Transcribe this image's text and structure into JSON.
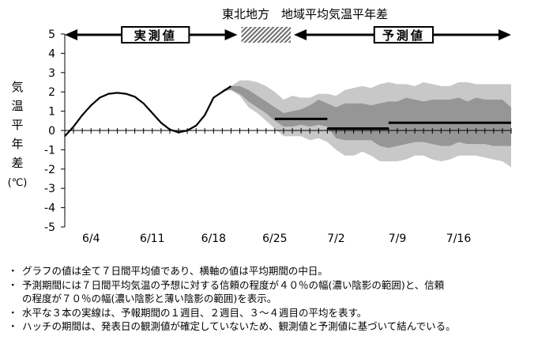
{
  "chart_data": {
    "type": "line",
    "title": "東北地方　地域平均気温平年差",
    "ylabel": [
      "気",
      "温",
      "平",
      "年",
      "差",
      "(℃)"
    ],
    "ylim": [
      -5,
      5
    ],
    "yticks": [
      "5",
      "4",
      "3",
      "2",
      "1",
      "0",
      "-1",
      "-2",
      "-3",
      "-4",
      "-5"
    ],
    "xlim": [
      "6/1",
      "7/22"
    ],
    "xticks": [
      "6/4",
      "6/11",
      "6/18",
      "6/25",
      "7/2",
      "7/9",
      "7/16"
    ],
    "grid": false,
    "labels": {
      "observed": "実測値",
      "forecast": "予測値"
    },
    "periods": {
      "observed": [
        "6/1",
        "6/21"
      ],
      "hatch": [
        "6/21",
        "6/27"
      ],
      "forecast": [
        "6/27",
        "7/22"
      ]
    },
    "series": [
      {
        "kind": "observed",
        "x": [
          "6/1",
          "6/2",
          "6/3",
          "6/4",
          "6/5",
          "6/6",
          "6/7",
          "6/8",
          "6/9",
          "6/10",
          "6/11",
          "6/12",
          "6/13",
          "6/14",
          "6/15",
          "6/16",
          "6/17",
          "6/18",
          "6/19",
          "6/20"
        ],
        "values": [
          -0.3,
          0.2,
          0.8,
          1.3,
          1.7,
          1.9,
          1.95,
          1.9,
          1.75,
          1.4,
          0.9,
          0.4,
          0.05,
          -0.1,
          0.0,
          0.25,
          0.8,
          1.7,
          2.0,
          2.3
        ]
      },
      {
        "kind": "range70",
        "x": [
          "6/19",
          "6/20",
          "6/21",
          "6/22",
          "6/23",
          "6/24",
          "6/25",
          "6/26",
          "6/27",
          "6/28",
          "6/29",
          "6/30",
          "7/1",
          "7/2",
          "7/3",
          "7/4",
          "7/5",
          "7/6",
          "7/7",
          "7/8",
          "7/9",
          "7/10",
          "7/11",
          "7/12",
          "7/13",
          "7/14",
          "7/15",
          "7/16",
          "7/17",
          "7/18",
          "7/19",
          "7/20",
          "7/21",
          "7/22"
        ],
        "upper": [
          2.0,
          2.3,
          2.6,
          2.6,
          2.5,
          2.3,
          2.0,
          1.6,
          1.8,
          1.7,
          1.7,
          1.9,
          1.9,
          1.8,
          2.1,
          2.2,
          2.3,
          2.2,
          2.4,
          2.5,
          2.4,
          2.4,
          2.3,
          2.5,
          2.4,
          2.3,
          2.3,
          2.5,
          2.5,
          2.4,
          2.4,
          2.4,
          2.4,
          2.4
        ],
        "lower": [
          2.0,
          2.1,
          1.8,
          1.2,
          0.9,
          0.5,
          0.1,
          -0.3,
          -0.3,
          -0.3,
          -0.5,
          -0.4,
          -0.6,
          -1.0,
          -1.3,
          -1.3,
          -1.1,
          -1.3,
          -1.6,
          -1.6,
          -1.6,
          -1.5,
          -1.3,
          -1.3,
          -1.5,
          -1.6,
          -1.5,
          -1.3,
          -1.3,
          -1.3,
          -1.4,
          -1.5,
          -1.6,
          -1.9
        ]
      },
      {
        "kind": "range40",
        "x": [
          "6/19",
          "6/20",
          "6/21",
          "6/22",
          "6/23",
          "6/24",
          "6/25",
          "6/26",
          "6/27",
          "6/28",
          "6/29",
          "6/30",
          "7/1",
          "7/2",
          "7/3",
          "7/4",
          "7/5",
          "7/6",
          "7/7",
          "7/8",
          "7/9",
          "7/10",
          "7/11",
          "7/12",
          "7/13",
          "7/14",
          "7/15",
          "7/16",
          "7/17",
          "7/18",
          "7/19",
          "7/20",
          "7/21",
          "7/22"
        ],
        "upper": [
          2.1,
          2.3,
          2.3,
          2.1,
          1.8,
          1.5,
          1.2,
          0.9,
          1.0,
          1.1,
          1.3,
          1.6,
          1.4,
          1.2,
          1.4,
          1.4,
          1.4,
          1.3,
          1.4,
          1.5,
          1.5,
          1.7,
          1.6,
          1.5,
          1.6,
          1.6,
          1.6,
          1.7,
          1.5,
          1.7,
          1.6,
          1.6,
          1.6,
          1.2
        ],
        "lower": [
          2.1,
          2.1,
          1.9,
          1.5,
          1.2,
          0.9,
          0.5,
          0.2,
          0.2,
          0.3,
          0.2,
          0.3,
          0.2,
          -0.4,
          -0.5,
          -0.5,
          -0.5,
          -0.5,
          -0.8,
          -0.9,
          -0.8,
          -0.7,
          -0.6,
          -0.6,
          -0.7,
          -0.8,
          -0.8,
          -0.6,
          -0.7,
          -0.7,
          -0.7,
          -0.8,
          -0.8,
          -0.8
        ]
      },
      {
        "kind": "week-average",
        "segments": [
          {
            "x": [
              "6/25",
              "7/1"
            ],
            "value": 0.6
          },
          {
            "x": [
              "7/1",
              "7/8"
            ],
            "value": 0.1
          },
          {
            "x": [
              "7/8",
              "7/22"
            ],
            "value": 0.4
          }
        ]
      }
    ]
  },
  "notes": [
    "グラフの値は全て７日間平均値であり、横軸の値は平均期間の中日。",
    "予測期間には７日間平均気温の予想に対する信頼の程度が４０％の幅(濃い陰影の範囲)と、信頼",
    "の程度が７０％の幅(濃い陰影と薄い陰影の範囲)を表示。",
    "水平な３本の実線は、予報期間の１週目、２週目、３～４週目の平均を表す。",
    "ハッチの期間は、発表日の観測値が確定していないため、観測値と予測値に基づいて結んでいる。"
  ],
  "bullet": "・",
  "colors": {
    "line": "#000000",
    "range70": "#c8c8c8",
    "range40": "#969696",
    "hatch": "#6e6e6e",
    "text": "#000000"
  }
}
